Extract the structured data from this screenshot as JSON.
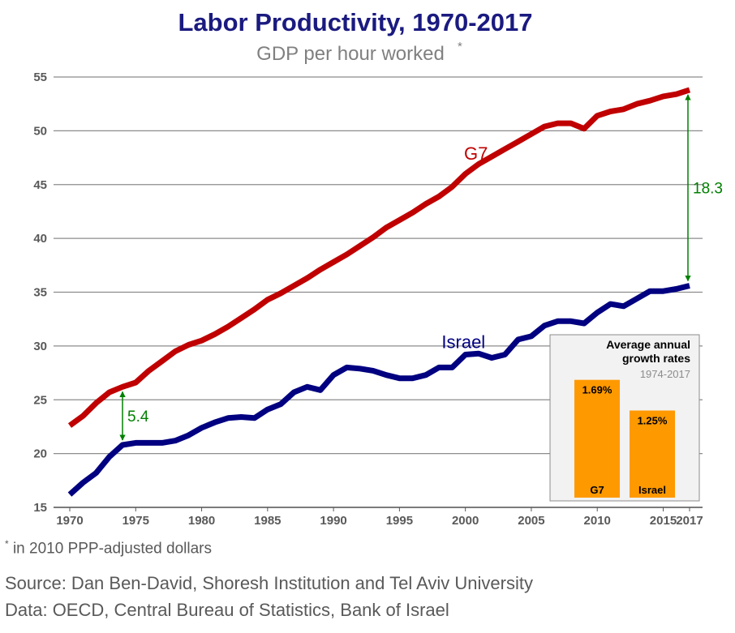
{
  "title": "Labor Productivity, 1970-2017",
  "subtitle": "GDP per hour worked",
  "subtitle_mark": "*",
  "footnote": {
    "mark": "*",
    "text": " in 2010 PPP-adjusted dollars"
  },
  "source": "Source: Dan Ben-David, Shoresh Institution and Tel Aviv University",
  "data_source": "Data: OECD, Central Bureau of Statistics, Bank of Israel",
  "colors": {
    "g7": "#c00000",
    "israel": "#000080",
    "gap": "#008000",
    "inset_bar": "#ff9900",
    "title": "#1a1a80"
  },
  "chart_data": {
    "type": "line",
    "x_ticks": [
      1970,
      1975,
      1980,
      1985,
      1990,
      1995,
      2000,
      2005,
      2010,
      2015,
      2017
    ],
    "y_ticks": [
      15,
      20,
      25,
      30,
      35,
      40,
      45,
      50,
      55
    ],
    "ylim": [
      15,
      55
    ],
    "xlim": [
      1970,
      2017
    ],
    "grid": true,
    "x": [
      1970,
      1971,
      1972,
      1973,
      1974,
      1975,
      1976,
      1977,
      1978,
      1979,
      1980,
      1981,
      1982,
      1983,
      1984,
      1985,
      1986,
      1987,
      1988,
      1989,
      1990,
      1991,
      1992,
      1993,
      1994,
      1995,
      1996,
      1997,
      1998,
      1999,
      2000,
      2001,
      2002,
      2003,
      2004,
      2005,
      2006,
      2007,
      2008,
      2009,
      2010,
      2011,
      2012,
      2013,
      2014,
      2015,
      2016,
      2017
    ],
    "series": [
      {
        "name": "G7",
        "color": "#c00000",
        "values": [
          22.6,
          23.5,
          24.7,
          25.7,
          26.2,
          26.6,
          27.7,
          28.6,
          29.5,
          30.1,
          30.5,
          31.1,
          31.8,
          32.6,
          33.4,
          34.3,
          34.9,
          35.6,
          36.3,
          37.1,
          37.8,
          38.5,
          39.3,
          40.1,
          41.0,
          41.7,
          42.4,
          43.2,
          43.9,
          44.8,
          46.0,
          46.9,
          47.6,
          48.3,
          49.0,
          49.7,
          50.4,
          50.7,
          50.7,
          50.2,
          51.4,
          51.8,
          52.0,
          52.5,
          52.8,
          53.2,
          53.4,
          53.8
        ]
      },
      {
        "name": "Israel",
        "color": "#000080",
        "values": [
          16.2,
          17.3,
          18.2,
          19.7,
          20.8,
          21.0,
          21.0,
          21.0,
          21.2,
          21.7,
          22.4,
          22.9,
          23.3,
          23.4,
          23.3,
          24.1,
          24.6,
          25.7,
          26.2,
          25.9,
          27.3,
          28.0,
          27.9,
          27.7,
          27.3,
          27.0,
          27.0,
          27.3,
          28.0,
          28.0,
          29.2,
          29.3,
          28.9,
          29.2,
          30.6,
          30.9,
          31.9,
          32.3,
          32.3,
          32.1,
          33.1,
          33.9,
          33.7,
          34.4,
          35.1,
          35.1,
          35.3,
          35.6
        ]
      }
    ],
    "annotations": [
      {
        "label": "5.4",
        "year": 1974,
        "from": 20.8,
        "to": 26.2
      },
      {
        "label": "18.3",
        "year": 2017,
        "from": 35.6,
        "to": 53.8
      }
    ],
    "inset": {
      "title_line1": "Average annual",
      "title_line2": "growth rates",
      "period": "1974-2017",
      "bars": [
        {
          "category": "G7",
          "value": 1.69,
          "label": "1.69%"
        },
        {
          "category": "Israel",
          "value": 1.25,
          "label": "1.25%"
        }
      ]
    }
  }
}
